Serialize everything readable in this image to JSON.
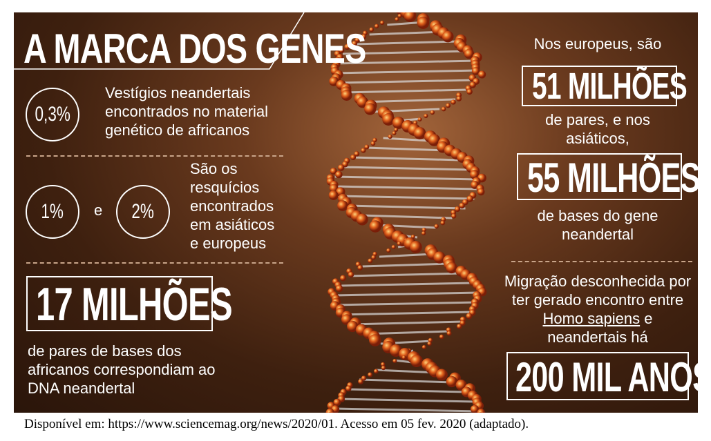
{
  "title": "A MARCA DOS GENES",
  "left": {
    "stat1": {
      "circle": "0,3%",
      "text": "Vestígios neandertais encontrados no material genético de africanos"
    },
    "stat2": {
      "circle_a": "1%",
      "joiner": "e",
      "circle_b": "2%",
      "text": "São os resquícios encontrados em asiáticos e europeus"
    },
    "stat3": {
      "box": "17 MILHÕES",
      "text": "de pares de bases dos africanos correspondiam ao DNA neandertal"
    }
  },
  "right": {
    "intro": "Nos europeus, são",
    "box1": "51 MILHÕES",
    "middle": "de pares, e nos asiáticos,",
    "box2": "55 MILHÕES",
    "after": "de bases do gene neandertal",
    "migration_before": "Migração desconhecida por ter gerado encontro entre",
    "migration_species": "Homo sapiens",
    "migration_after": "e neandertais há",
    "box3": "200 MIL ANOS"
  },
  "source": "Disponível em: https://www.sciencemag.org/news/2020/01. Acesso em 05 fev. 2020 (adaptado)."
}
